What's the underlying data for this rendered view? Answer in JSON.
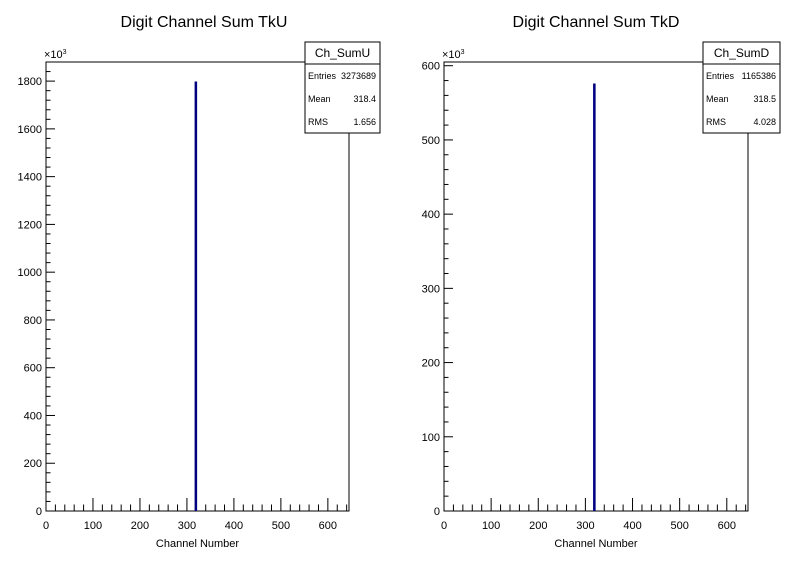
{
  "chart_data": [
    {
      "type": "bar",
      "title": "Digit Channel Sum TkU",
      "xlabel": "Channel Number",
      "ylabel": "",
      "xlim": [
        0,
        645
      ],
      "ylim": [
        0,
        1880
      ],
      "y_multiplier": "×10",
      "y_multiplier_exp": "3",
      "x_ticks": [
        "0",
        "100",
        "200",
        "300",
        "400",
        "500",
        "600"
      ],
      "y_ticks": [
        "0",
        "200",
        "400",
        "600",
        "800",
        "1000",
        "1200",
        "1400",
        "1600",
        "1800"
      ],
      "bins": [
        {
          "x": 318,
          "width": 2,
          "value": 1795
        }
      ],
      "stats": {
        "name": "Ch_SumU",
        "rows": [
          {
            "key": "Entries",
            "value": "3273689"
          },
          {
            "key": "Mean",
            "value": "318.4"
          },
          {
            "key": "RMS",
            "value": "1.656"
          }
        ]
      },
      "colors": {
        "line": "#000080"
      }
    },
    {
      "type": "bar",
      "title": "Digit Channel Sum TkD",
      "xlabel": "Channel Number",
      "ylabel": "",
      "xlim": [
        0,
        645
      ],
      "ylim": [
        0,
        605
      ],
      "y_multiplier": "×10",
      "y_multiplier_exp": "3",
      "x_ticks": [
        "0",
        "100",
        "200",
        "300",
        "400",
        "500",
        "600"
      ],
      "y_ticks": [
        "0",
        "100",
        "200",
        "300",
        "400",
        "500",
        "600"
      ],
      "bins": [
        {
          "x": 318,
          "width": 2,
          "value": 575
        }
      ],
      "stats": {
        "name": "Ch_SumD",
        "rows": [
          {
            "key": "Entries",
            "value": "1165386"
          },
          {
            "key": "Mean",
            "value": "318.5"
          },
          {
            "key": "RMS",
            "value": "4.028"
          }
        ]
      },
      "colors": {
        "line": "#000080"
      }
    }
  ]
}
